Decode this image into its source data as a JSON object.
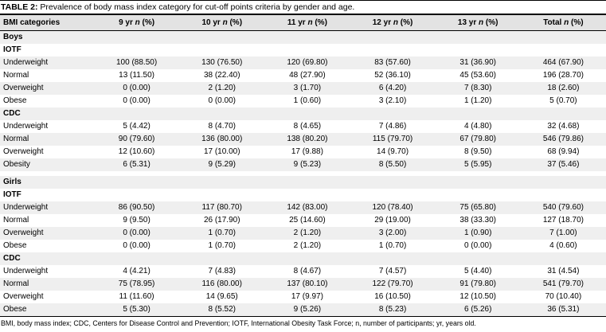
{
  "title": {
    "label": "TABLE 2:",
    "text": "Prevalence of body mass index category for cut-off points criteria by gender and age."
  },
  "table": {
    "first_header": "BMI categories",
    "age_headers": [
      {
        "age": "9 yr",
        "n": "n",
        "pct": "(%)"
      },
      {
        "age": "10 yr",
        "n": "n",
        "pct": "(%)"
      },
      {
        "age": "11 yr",
        "n": "n",
        "pct": "(%)"
      },
      {
        "age": "12 yr",
        "n": "n",
        "pct": "(%)"
      },
      {
        "age": "13 yr",
        "n": "n",
        "pct": "(%)"
      },
      {
        "age": "Total",
        "n": "n",
        "pct": "(%)"
      }
    ],
    "rows": [
      {
        "label": "Boys",
        "type": "section",
        "values": []
      },
      {
        "label": "IOTF",
        "type": "subsection",
        "values": []
      },
      {
        "label": "Underweight",
        "type": "data",
        "values": [
          "100 (88.50)",
          "130 (76.50)",
          "120 (69.80)",
          "83 (57.60)",
          "31 (36.90)",
          "464 (67.90)"
        ]
      },
      {
        "label": "Normal",
        "type": "data",
        "values": [
          "13 (11.50)",
          "38 (22.40)",
          "48 (27.90)",
          "52 (36.10)",
          "45 (53.60)",
          "196 (28.70)"
        ]
      },
      {
        "label": "Overweight",
        "type": "data",
        "values": [
          "0 (0.00)",
          "2 (1.20)",
          "3 (1.70)",
          "6 (4.20)",
          "7 (8.30)",
          "18 (2.60)"
        ]
      },
      {
        "label": "Obese",
        "type": "data",
        "values": [
          "0 (0.00)",
          "0 (0.00)",
          "1 (0.60)",
          "3 (2.10)",
          "1 (1.20)",
          "5 (0.70)"
        ]
      },
      {
        "label": "CDC",
        "type": "subsection",
        "values": []
      },
      {
        "label": "Underweight",
        "type": "data",
        "values": [
          "5 (4.42)",
          "8 (4.70)",
          "8 (4.65)",
          "7 (4.86)",
          "4 (4.80)",
          "32 (4.68)"
        ]
      },
      {
        "label": "Normal",
        "type": "data",
        "values": [
          "90 (79.60)",
          "136 (80.00)",
          "138 (80.20)",
          "115 (79.70)",
          "67 (79.80)",
          "546 (79.86)"
        ]
      },
      {
        "label": "Overweight",
        "type": "data",
        "values": [
          "12 (10.60)",
          "17 (10.00)",
          "17 (9.88)",
          "14 (9.70)",
          "8 (9.50)",
          "68 (9.94)"
        ]
      },
      {
        "label": "Obesity",
        "type": "data",
        "values": [
          "6 (5.31)",
          "9 (5.29)",
          "9 (5.23)",
          "8 (5.50)",
          "5 (5.95)",
          "37 (5.46)"
        ]
      },
      {
        "label": "",
        "type": "spacer",
        "values": []
      },
      {
        "label": "Girls",
        "type": "section",
        "values": []
      },
      {
        "label": "IOTF",
        "type": "subsection",
        "values": []
      },
      {
        "label": "Underweight",
        "type": "data",
        "values": [
          "86 (90.50)",
          "117 (80.70)",
          "142 (83.00)",
          "120 (78.40)",
          "75 (65.80)",
          "540 (79.60)"
        ]
      },
      {
        "label": "Normal",
        "type": "data",
        "values": [
          "9 (9.50)",
          "26 (17.90)",
          "25 (14.60)",
          "29 (19.00)",
          "38 (33.30)",
          "127 (18.70)"
        ]
      },
      {
        "label": "Overweight",
        "type": "data",
        "values": [
          "0 (0.00)",
          "1 (0.70)",
          "2 (1.20)",
          "3 (2.00)",
          "1 (0.90)",
          "7 (1.00)"
        ]
      },
      {
        "label": "Obese",
        "type": "data",
        "values": [
          "0 (0.00)",
          "1 (0.70)",
          "2 (1.20)",
          "1 (0.70)",
          "0 (0.00)",
          "4 (0.60)"
        ]
      },
      {
        "label": "CDC",
        "type": "subsection",
        "values": []
      },
      {
        "label": "Underweight",
        "type": "data",
        "values": [
          "4 (4.21)",
          "7 (4.83)",
          "8 (4.67)",
          "7 (4.57)",
          "5 (4.40)",
          "31 (4.54)"
        ]
      },
      {
        "label": "Normal",
        "type": "data",
        "values": [
          "75 (78.95)",
          "116 (80.00)",
          "137 (80.10)",
          "122 (79.70)",
          "91 (79.80)",
          "541 (79.70)"
        ]
      },
      {
        "label": "Overweight",
        "type": "data",
        "values": [
          "11 (11.60)",
          "14 (9.65)",
          "17 (9.97)",
          "16 (10.50)",
          "12 (10.50)",
          "70 (10.40)"
        ]
      },
      {
        "label": "Obese",
        "type": "data",
        "values": [
          "5 (5.30)",
          "8 (5.52)",
          "9 (5.26)",
          "8 (5.23)",
          "6 (5.26)",
          "36 (5.31)"
        ]
      }
    ]
  },
  "footnote": "BMI, body mass index; CDC, Centers for Disease Control and Prevention; IOTF, International Obesity Task Force; n, number of participants; yr, years old.",
  "colors": {
    "shaded_row": "#efefef",
    "header_band": "#e3e3e3",
    "rule": "#000000"
  }
}
